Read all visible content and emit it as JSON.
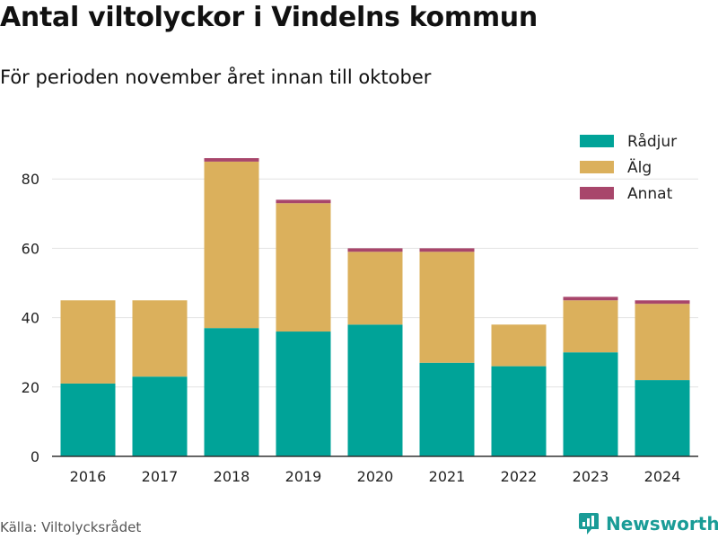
{
  "header": {
    "title": "Antal viltolyckor i Vindelns kommun",
    "subtitle": "För perioden november året innan till oktober"
  },
  "footer": {
    "source": "Källa: Viltolycksrådet",
    "brand": "Newsworthy"
  },
  "colors": {
    "radjur": "#00a398",
    "alg": "#dbb05c",
    "annat": "#a8466b",
    "brand": "#1a9c97"
  },
  "chart_data": {
    "type": "bar",
    "stacked": true,
    "categories": [
      "2016",
      "2017",
      "2018",
      "2019",
      "2020",
      "2021",
      "2022",
      "2023",
      "2024"
    ],
    "series": [
      {
        "name": "Rådjur",
        "color": "#00a398",
        "values": [
          21,
          23,
          37,
          36,
          38,
          27,
          26,
          30,
          22
        ]
      },
      {
        "name": "Älg",
        "color": "#dbb05c",
        "values": [
          24,
          22,
          48,
          37,
          21,
          32,
          12,
          15,
          22
        ]
      },
      {
        "name": "Annat",
        "color": "#a8466b",
        "values": [
          0,
          0,
          1,
          1,
          1,
          1,
          0,
          1,
          1
        ]
      }
    ],
    "ylim": [
      0,
      90
    ],
    "yticks": [
      0,
      20,
      40,
      60,
      80
    ],
    "grid": true,
    "legend_position": "top-right",
    "xlabel": "",
    "ylabel": ""
  }
}
